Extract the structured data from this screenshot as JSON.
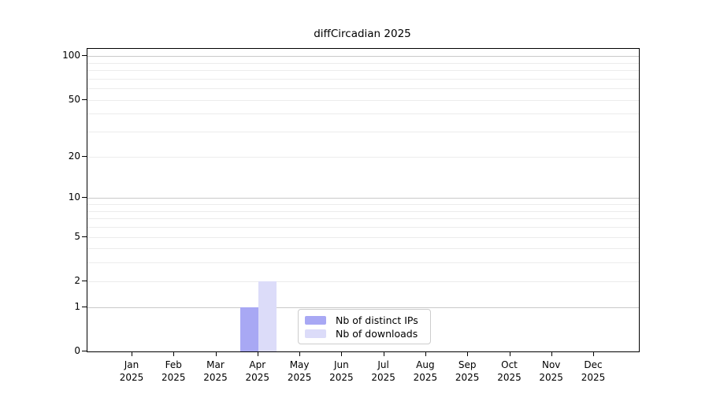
{
  "chart_data": {
    "type": "bar",
    "title": "diffCircadian 2025",
    "categories": [
      "Jan",
      "Feb",
      "Mar",
      "Apr",
      "May",
      "Jun",
      "Jul",
      "Aug",
      "Sep",
      "Oct",
      "Nov",
      "Dec"
    ],
    "year_label": "2025",
    "series": [
      {
        "name": "Nb of distinct IPs",
        "color": "#a8a8f4",
        "values": [
          0,
          0,
          0,
          1,
          0,
          0,
          0,
          0,
          0,
          0,
          0,
          0
        ]
      },
      {
        "name": "Nb of downloads",
        "color": "#dcdcf9",
        "values": [
          0,
          0,
          0,
          2,
          0,
          0,
          0,
          0,
          0,
          0,
          0,
          0
        ]
      }
    ],
    "yscale": "log10(value+1)",
    "ylim": [
      0,
      112
    ],
    "y_ticks": [
      0,
      1,
      2,
      5,
      10,
      20,
      50,
      100
    ],
    "y_gridlines_major": [
      1,
      10,
      100
    ],
    "y_gridlines_minor": [
      2,
      3,
      4,
      5,
      6,
      7,
      8,
      9,
      20,
      30,
      40,
      50,
      60,
      70,
      80,
      90
    ],
    "grid": true,
    "legend_position": "bottom-center",
    "colors": {
      "grid_major": "#c9c9c9",
      "grid_minor": "#ececec",
      "axis": "#000000",
      "background": "#ffffff"
    }
  }
}
